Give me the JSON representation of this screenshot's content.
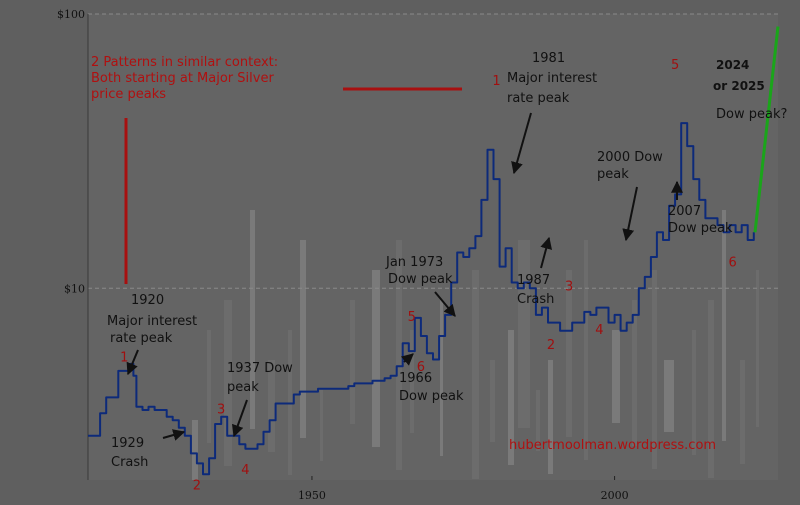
{
  "chart_data": {
    "type": "line",
    "y_scale": "log",
    "ylim": [
      2,
      100
    ],
    "xlim": [
      1913,
      2027
    ],
    "y_ticks": [
      {
        "value": 100,
        "label": "$100"
      },
      {
        "value": 10,
        "label": "$10"
      }
    ],
    "x_ticks": [
      {
        "value": 1950,
        "label": "1950"
      },
      {
        "value": 2000,
        "label": "2000"
      }
    ],
    "grid": "horizontal dashed",
    "series": [
      {
        "color": "#0d2a7a",
        "x": [
          1913,
          1914,
          1915,
          1916,
          1917,
          1918,
          1919,
          1920,
          1920.5,
          1921,
          1922,
          1923,
          1924,
          1925,
          1926,
          1927,
          1928,
          1929,
          1930,
          1931,
          1932,
          1933,
          1934,
          1935,
          1936,
          1937,
          1938,
          1939,
          1940,
          1941,
          1942,
          1943,
          1944,
          1945,
          1946,
          1947,
          1948,
          1949,
          1950,
          1951,
          1952,
          1953,
          1954,
          1955,
          1956,
          1957,
          1958,
          1959,
          1960,
          1961,
          1962,
          1963,
          1964,
          1965,
          1966,
          1967,
          1968,
          1969,
          1970,
          1971,
          1972,
          1973,
          1974,
          1975,
          1976,
          1977,
          1978,
          1979,
          1980,
          1981,
          1982,
          1983,
          1984,
          1985,
          1986,
          1987,
          1988,
          1989,
          1990,
          1991,
          1992,
          1993,
          1994,
          1995,
          1996,
          1997,
          1998,
          1999,
          2000,
          2001,
          2002,
          2003,
          2004,
          2005,
          2006,
          2007,
          2008,
          2009,
          2010,
          2011,
          2012,
          2013,
          2014,
          2015,
          2016,
          2017,
          2018,
          2019,
          2020,
          2021,
          2022,
          2023
        ],
        "y": [
          2.9,
          2.9,
          3.5,
          4.0,
          4.0,
          5.0,
          5.0,
          5.3,
          4.8,
          3.7,
          3.6,
          3.7,
          3.6,
          3.6,
          3.4,
          3.3,
          3.1,
          2.9,
          2.5,
          2.3,
          2.1,
          2.4,
          3.2,
          3.4,
          2.9,
          2.9,
          2.7,
          2.6,
          2.6,
          2.7,
          3.0,
          3.3,
          3.8,
          3.8,
          3.8,
          4.1,
          4.2,
          4.2,
          4.2,
          4.3,
          4.3,
          4.3,
          4.3,
          4.3,
          4.4,
          4.5,
          4.5,
          4.5,
          4.6,
          4.6,
          4.7,
          4.8,
          5.2,
          6.3,
          5.9,
          7.8,
          6.7,
          5.8,
          5.5,
          6.7,
          8.0,
          10.5,
          13.5,
          13.0,
          14.0,
          15.5,
          21.0,
          32.0,
          25.0,
          12.0,
          14.0,
          10.5,
          10.0,
          10.5,
          10.0,
          8.0,
          8.5,
          7.5,
          7.5,
          7.0,
          7.0,
          7.5,
          7.5,
          8.2,
          8.0,
          8.5,
          8.5,
          7.5,
          8.0,
          7.0,
          7.5,
          8.0,
          10.0,
          11.0,
          13.0,
          16.0,
          15.0,
          20.0,
          22.0,
          40.0,
          33.0,
          25.0,
          21.0,
          18.0,
          18.0,
          17.0,
          16.0,
          17.0,
          16.0,
          17.0,
          15.0,
          16.0
        ]
      }
    ],
    "projection": {
      "color": "#1aa51a",
      "x": [
        2023.2,
        2027
      ],
      "y": [
        16,
        90
      ]
    },
    "labels": {
      "pattern": [
        "2 Patterns in similar context:",
        "Both starting at Major Silver",
        "price peaks"
      ],
      "pk1920": [
        "1920",
        "Major interest",
        "rate peak"
      ],
      "pk1929": [
        "1929",
        "Crash"
      ],
      "pk1937": [
        "1937 Dow",
        "peak"
      ],
      "pk1966": [
        "1966",
        "Dow peak"
      ],
      "pk1973": [
        "Jan 1973",
        "Dow peak"
      ],
      "pk1981": [
        "1981",
        "Major interest",
        "rate peak"
      ],
      "pk1987": [
        "1987",
        "Crash"
      ],
      "pk2000": [
        "2000 Dow",
        "peak"
      ],
      "pk2007": [
        "2007",
        "Dow peak"
      ],
      "pk2024": [
        "2024",
        "or  2025"
      ],
      "dowpeak": "Dow peak?",
      "watermark": "hubertmoolman.wordpress.com"
    },
    "wave_numbers": [
      {
        "label": "1",
        "x": 1919.0,
        "y": 5.4
      },
      {
        "label": "2",
        "x": 1931.0,
        "y": 1.85
      },
      {
        "label": "3",
        "x": 1935.0,
        "y": 3.5
      },
      {
        "label": "4",
        "x": 1939.0,
        "y": 2.1
      },
      {
        "label": "5",
        "x": 1966.5,
        "y": 7.6
      },
      {
        "label": "6",
        "x": 1968.0,
        "y": 5.0
      },
      {
        "label": "1",
        "x": 1980.5,
        "y": 55.0
      },
      {
        "label": "2",
        "x": 1989.5,
        "y": 6.0
      },
      {
        "label": "3",
        "x": 1992.5,
        "y": 9.8
      },
      {
        "label": "4",
        "x": 1997.5,
        "y": 6.8
      },
      {
        "label": "5",
        "x": 2010.0,
        "y": 63.0
      },
      {
        "label": "6",
        "x": 2019.5,
        "y": 12.0
      }
    ]
  }
}
